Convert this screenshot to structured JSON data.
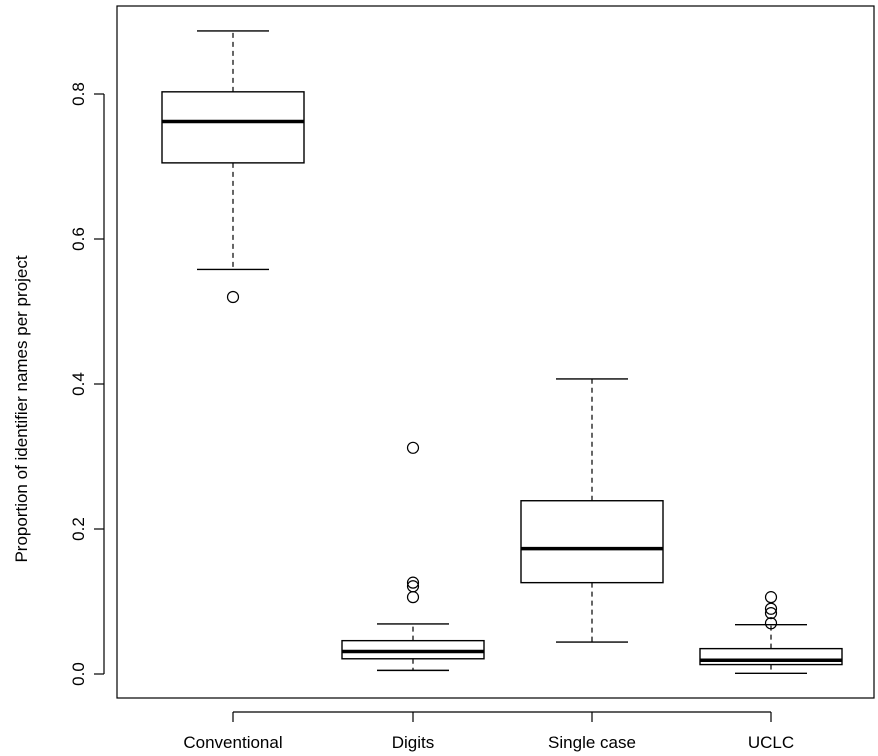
{
  "chart_data": {
    "type": "boxplot",
    "title": "",
    "xlabel": "",
    "ylabel": "Proportion of identifier names per project",
    "ylim": [
      -0.035,
      0.91
    ],
    "yticks": [
      0.0,
      0.2,
      0.4,
      0.6,
      0.8
    ],
    "ytick_labels": [
      "0.0",
      "0.2",
      "0.4",
      "0.6",
      "0.8"
    ],
    "grid": false,
    "categories": [
      "Conventional",
      "Digits",
      "Single case",
      "UCLC"
    ],
    "boxes": [
      {
        "category": "Conventional",
        "whisker_low": 0.558,
        "q1": 0.705,
        "median": 0.762,
        "q3": 0.803,
        "whisker_high": 0.887,
        "outliers": [
          0.52
        ]
      },
      {
        "category": "Digits",
        "whisker_low": 0.005,
        "q1": 0.021,
        "median": 0.031,
        "q3": 0.046,
        "whisker_high": 0.069,
        "outliers": [
          0.312,
          0.126,
          0.121,
          0.106
        ]
      },
      {
        "category": "Single case",
        "whisker_low": 0.044,
        "q1": 0.126,
        "median": 0.173,
        "q3": 0.239,
        "whisker_high": 0.407,
        "outliers": []
      },
      {
        "category": "UCLC",
        "whisker_low": 0.001,
        "q1": 0.013,
        "median": 0.019,
        "q3": 0.035,
        "whisker_high": 0.068,
        "outliers": [
          0.106,
          0.09,
          0.084,
          0.07
        ]
      }
    ]
  }
}
